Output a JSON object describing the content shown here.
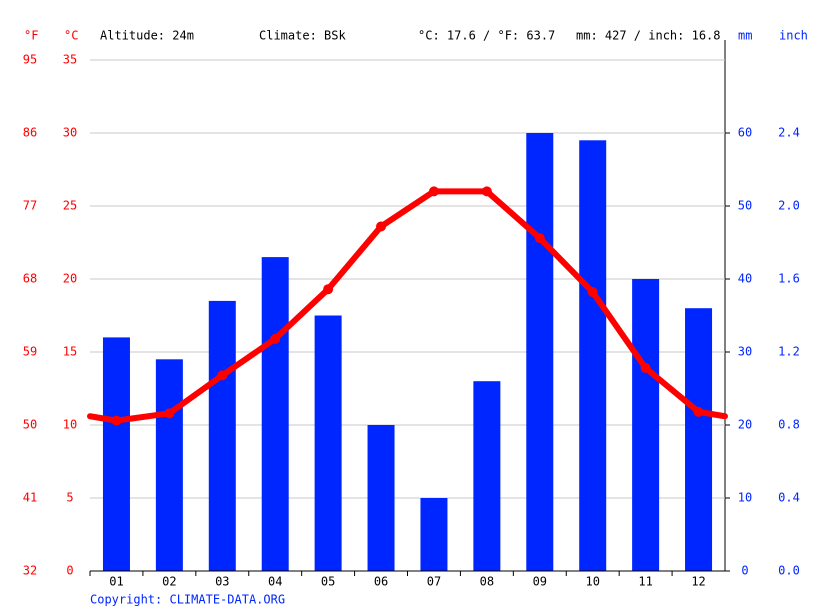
{
  "chart_data": {
    "type": "climate",
    "info": [
      "Altitude: 24m",
      "Climate: BSk",
      "°C: 17.6 / °F: 63.7",
      "mm: 427 / inch: 16.8"
    ],
    "units": {
      "f": "°F",
      "c": "°C",
      "mm": "mm",
      "inch": "inch"
    },
    "categories": [
      "01",
      "02",
      "03",
      "04",
      "05",
      "06",
      "07",
      "08",
      "09",
      "10",
      "11",
      "12"
    ],
    "series": [
      {
        "color": "#0026ff",
        "axis": "y2",
        "values": [
          32,
          29,
          37,
          43,
          35,
          20,
          10,
          26,
          60,
          59,
          40,
          36
        ]
      },
      {
        "color": "#ff0000",
        "values": [
          10.3,
          10.8,
          13.4,
          15.9,
          19.3,
          23.6,
          26.0,
          26.0,
          22.8,
          19.1,
          13.9,
          10.9
        ]
      }
    ],
    "ylim": [
      0,
      35
    ],
    "yticks": [
      0,
      5,
      10,
      15,
      20,
      25,
      30,
      35
    ],
    "yflim": [
      32,
      95
    ],
    "yfticks": [
      32,
      41,
      50,
      59,
      68,
      77,
      86,
      95
    ],
    "y2lim": [
      0,
      70
    ],
    "y2ticks": [
      0,
      10,
      20,
      30,
      40,
      50,
      60
    ],
    "yinchlim": [
      0,
      2.8
    ],
    "yinchticks": [
      {
        "value": 0,
        "label": "0.0"
      },
      {
        "value": 0.4,
        "label": "0.4"
      },
      {
        "value": 0.8,
        "label": "0.8"
      },
      {
        "value": 1.2,
        "label": "1.2"
      },
      {
        "value": 1.6,
        "label": "1.6"
      },
      {
        "value": 2.0,
        "label": "2.0"
      },
      {
        "value": 2.4,
        "label": "2.4"
      }
    ],
    "grid": true,
    "copyright": "Copyright: CLIMATE-DATA.ORG"
  }
}
